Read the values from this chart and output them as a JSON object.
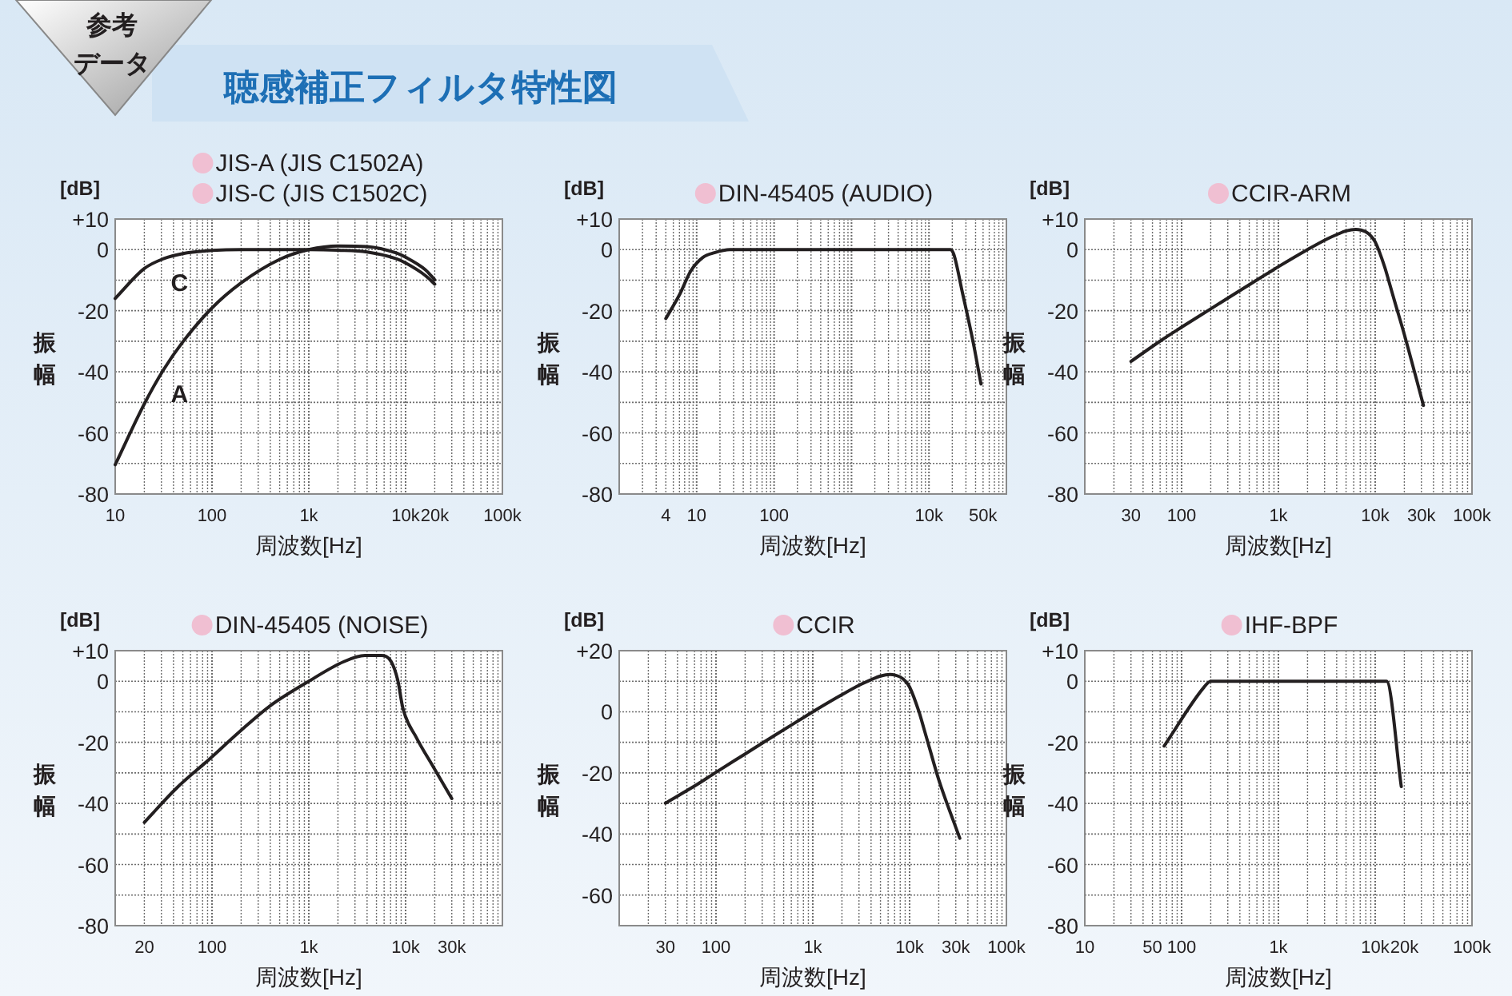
{
  "chart_data": [
    {
      "type": "other",
      "title": "聴感補正フィルタ特性図",
      "annotations": [
        "参考",
        "データ"
      ]
    },
    {
      "type": "line",
      "title": "JIS-A (JIS C1502A)",
      "subtitle": "JIS-C (JIS C1502C)",
      "xlabel": "周波数[Hz]",
      "ylabel": "振幅",
      "log": "x",
      "grid": true,
      "xlim": [
        10,
        100000
      ],
      "ylim": [
        -80,
        10
      ],
      "xticks": [
        {
          "value": 10,
          "label": "10"
        },
        {
          "value": 100,
          "label": "100"
        },
        {
          "value": 1000,
          "label": "1k"
        },
        {
          "value": 10000,
          "label": "10k"
        },
        {
          "value": 20000,
          "label": "20k"
        },
        {
          "value": 100000,
          "label": "100k"
        }
      ],
      "yticks": [
        {
          "value": 10,
          "label": "+10"
        },
        0,
        {
          "value": -10,
          "label": null
        },
        -20,
        {
          "value": -30,
          "label": null
        },
        -40,
        {
          "value": -50,
          "label": null
        },
        -60,
        {
          "value": -70,
          "label": null
        },
        -80
      ],
      "annotations": [
        "[dB]"
      ],
      "series": [
        {
          "name": "A",
          "color": "#231f20",
          "x": [
            10,
            20,
            31.5,
            50,
            100,
            200,
            500,
            1000,
            2000,
            4000,
            8000,
            10000,
            16000,
            20000
          ],
          "values": [
            -70.4,
            -50.5,
            -39.4,
            -30.2,
            -19.1,
            -10.9,
            -3.2,
            0,
            1.2,
            1,
            -1.1,
            -2.5,
            -6.6,
            -9.9
          ]
        },
        {
          "name": "C",
          "color": "#231f20",
          "x": [
            10,
            20,
            31.5,
            50,
            100,
            200,
            1000,
            2000,
            4000,
            8000,
            10000,
            16000,
            20000
          ],
          "values": [
            -16,
            -6.2,
            -3,
            -1.3,
            -0.3,
            0,
            0,
            -0.2,
            -0.8,
            -3,
            -4.4,
            -8.5,
            -11.3
          ]
        }
      ]
    },
    {
      "type": "line",
      "title": "DIN-45405 (AUDIO)",
      "xlabel": "周波数[Hz]",
      "ylabel": "振幅",
      "log": "x",
      "grid": true,
      "xlim": [
        1,
        100000
      ],
      "ylim": [
        -80,
        10
      ],
      "xticks": [
        {
          "value": 4,
          "label": "4"
        },
        {
          "value": 10,
          "label": "10"
        },
        {
          "value": 100,
          "label": "100"
        },
        {
          "value": 10000,
          "label": "10k"
        },
        {
          "value": 50000,
          "label": "50k"
        }
      ],
      "yticks": [
        {
          "value": 10,
          "label": "+10"
        },
        0,
        {
          "value": -10,
          "label": null
        },
        -20,
        {
          "value": -30,
          "label": null
        },
        -40,
        {
          "value": -50,
          "label": null
        },
        -60,
        {
          "value": -70,
          "label": null
        },
        -80
      ],
      "annotations": [
        "[dB]"
      ],
      "series": [
        {
          "color": "#231f20",
          "x": [
            4,
            6,
            8.4,
            12,
            17,
            27,
            100,
            3000,
            19000,
            21000,
            27000,
            37000,
            47000
          ],
          "values": [
            -22.6,
            -14.8,
            -7,
            -2.6,
            -1,
            0,
            0,
            0,
            0,
            -1.7,
            -14,
            -30,
            -44
          ]
        }
      ]
    },
    {
      "type": "line",
      "title": "CCIR-ARM",
      "xlabel": "周波数[Hz]",
      "ylabel": "振幅",
      "log": "x",
      "grid": true,
      "xlim": [
        10,
        100000
      ],
      "ylim": [
        -80,
        10
      ],
      "xticks": [
        {
          "value": 30,
          "label": "30"
        },
        {
          "value": 100,
          "label": "100"
        },
        {
          "value": 1000,
          "label": "1k"
        },
        {
          "value": 10000,
          "label": "10k"
        },
        {
          "value": 30000,
          "label": "30k"
        },
        {
          "value": 100000,
          "label": "100k"
        }
      ],
      "yticks": [
        {
          "value": 10,
          "label": "+10"
        },
        0,
        {
          "value": -10,
          "label": null
        },
        -20,
        {
          "value": -30,
          "label": null
        },
        -40,
        {
          "value": -50,
          "label": null
        },
        -60,
        {
          "value": -70,
          "label": null
        },
        -80
      ],
      "annotations": [
        "[dB]"
      ],
      "series": [
        {
          "color": "#231f20",
          "x": [
            30,
            63,
            100,
            200,
            400,
            800,
            1000,
            2000,
            3150,
            4000,
            5000,
            6300,
            7100,
            8000,
            9000,
            10000,
            12500,
            14000,
            16000,
            20000,
            31500
          ],
          "values": [
            -36.6,
            -29.5,
            -25.4,
            -19.4,
            -13.4,
            -7.5,
            -5.6,
            0,
            3.4,
            4.9,
            6.1,
            6.6,
            6.4,
            5.8,
            4.5,
            2.5,
            -5.6,
            -10.9,
            -17.3,
            -27.8,
            -51
          ]
        }
      ]
    },
    {
      "type": "line",
      "title": "DIN-45405 (NOISE)",
      "xlabel": "周波数[Hz]",
      "ylabel": "振幅",
      "log": "x",
      "grid": true,
      "xlim": [
        10,
        100000
      ],
      "ylim": [
        -80,
        10
      ],
      "xticks": [
        {
          "value": 20,
          "label": "20"
        },
        {
          "value": 100,
          "label": "100"
        },
        {
          "value": 1000,
          "label": "1k"
        },
        {
          "value": 10000,
          "label": "10k"
        },
        {
          "value": 30000,
          "label": "30k"
        }
      ],
      "yticks": [
        {
          "value": 10,
          "label": "+10"
        },
        0,
        {
          "value": -10,
          "label": null
        },
        -20,
        {
          "value": -30,
          "label": null
        },
        -40,
        {
          "value": -50,
          "label": null
        },
        -60,
        {
          "value": -70,
          "label": null
        },
        -80
      ],
      "annotations": [
        "[dB]"
      ],
      "series": [
        {
          "color": "#231f20",
          "x": [
            20,
            43,
            94,
            193,
            400,
            1000,
            2300,
            3800,
            5600,
            7100,
            8300,
            9400,
            13000,
            19300,
            30000
          ],
          "values": [
            -46.2,
            -35,
            -25.5,
            -16.5,
            -8,
            0,
            6.4,
            8.4,
            8.4,
            6.4,
            0.3,
            -9,
            -18.6,
            -28,
            -38.4
          ]
        }
      ]
    },
    {
      "type": "line",
      "title": "CCIR",
      "xlabel": "周波数[Hz]",
      "ylabel": "振幅",
      "log": "x",
      "grid": true,
      "xlim": [
        10,
        100000
      ],
      "ylim": [
        -70,
        20
      ],
      "xticks": [
        {
          "value": 30,
          "label": "30"
        },
        {
          "value": 100,
          "label": "100"
        },
        {
          "value": 1000,
          "label": "1k"
        },
        {
          "value": 10000,
          "label": "10k"
        },
        {
          "value": 30000,
          "label": "30k"
        },
        {
          "value": 100000,
          "label": "100k"
        }
      ],
      "yticks": [
        {
          "value": 20,
          "label": "+20"
        },
        {
          "value": 10,
          "label": null
        },
        0,
        {
          "value": -10,
          "label": null
        },
        -20,
        {
          "value": -30,
          "label": null
        },
        -40,
        {
          "value": -50,
          "label": null
        },
        -60,
        {
          "value": -70,
          "label": null
        }
      ],
      "annotations": [
        "[dB]"
      ],
      "series": [
        {
          "color": "#231f20",
          "x": [
            30,
            63,
            100,
            200,
            400,
            800,
            1000,
            2000,
            3150,
            4000,
            5000,
            6300,
            7100,
            8000,
            9000,
            10000,
            12500,
            14000,
            16000,
            20000,
            33000
          ],
          "values": [
            -29.9,
            -23.9,
            -19.8,
            -13.8,
            -7.8,
            -1.9,
            0,
            5.6,
            9,
            10.5,
            11.7,
            12.2,
            12,
            11.4,
            10.1,
            8.1,
            0,
            -5.3,
            -11.7,
            -22.2,
            -41.4
          ]
        }
      ]
    },
    {
      "type": "line",
      "title": "IHF-BPF",
      "xlabel": "周波数[Hz]",
      "ylabel": "振幅",
      "log": "x",
      "grid": true,
      "xlim": [
        10,
        100000
      ],
      "ylim": [
        -80,
        10
      ],
      "xticks": [
        {
          "value": 10,
          "label": "10"
        },
        {
          "value": 50,
          "label": "50"
        },
        {
          "value": 100,
          "label": "100"
        },
        {
          "value": 1000,
          "label": "1k"
        },
        {
          "value": 10000,
          "label": "10k"
        },
        {
          "value": 20000,
          "label": "20k"
        },
        {
          "value": 100000,
          "label": "100k"
        }
      ],
      "yticks": [
        {
          "value": 10,
          "label": "+10"
        },
        0,
        {
          "value": -10,
          "label": null
        },
        -20,
        {
          "value": -30,
          "label": null
        },
        -40,
        {
          "value": -50,
          "label": null
        },
        -60,
        {
          "value": -70,
          "label": null
        },
        -80
      ],
      "annotations": [
        "[dB]"
      ],
      "series": [
        {
          "color": "#231f20",
          "x": [
            66,
            170,
            200,
            13100,
            18600
          ],
          "values": [
            -21.2,
            -2,
            0,
            0,
            -34.5
          ]
        }
      ]
    }
  ]
}
